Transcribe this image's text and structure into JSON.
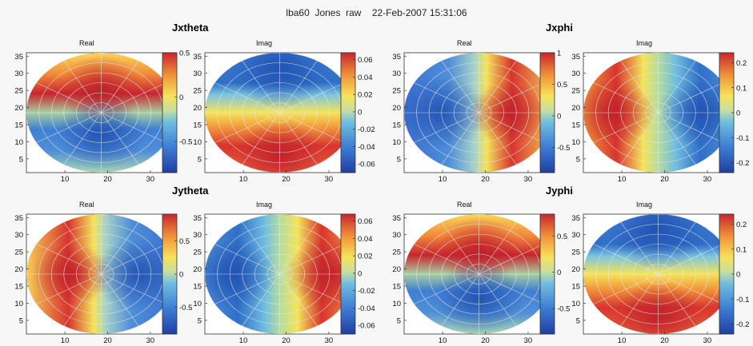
{
  "figure_title": "lba60  Jones  raw    22-Feb-2007 15:31:06",
  "groups": [
    {
      "title": "Jxtheta"
    },
    {
      "title": "Jxphi"
    },
    {
      "title": "Jytheta"
    },
    {
      "title": "Jyphi"
    }
  ],
  "chart_data": [
    {
      "type": "heatmap",
      "group": "Jxtheta",
      "title": "Real",
      "xticks": [
        10,
        20,
        30
      ],
      "yticks": [
        5,
        10,
        15,
        20,
        25,
        30,
        35
      ],
      "xlim": [
        1,
        36
      ],
      "ylim": [
        1,
        36
      ],
      "colorbar": {
        "clim": [
          -0.85,
          0.5
        ],
        "ticks": [
          0.5,
          0,
          -0.5
        ],
        "tick_labels": [
          "0.5",
          "0",
          "-0.5"
        ]
      },
      "pattern": "north-south lobes: positive (red) north, negative (blue) south"
    },
    {
      "type": "heatmap",
      "group": "Jxtheta",
      "title": "Imag",
      "xticks": [
        10,
        20,
        30
      ],
      "yticks": [
        5,
        10,
        15,
        20,
        25,
        30,
        35
      ],
      "xlim": [
        1,
        36
      ],
      "ylim": [
        1,
        36
      ],
      "colorbar": {
        "clim": [
          -0.07,
          0.068
        ],
        "ticks": [
          0.06,
          0.04,
          0.02,
          0,
          -0.02,
          -0.04,
          -0.06
        ],
        "tick_labels": [
          "0.06",
          "0.04",
          "0.02",
          "0",
          "-0.02",
          "-0.04",
          "-0.06"
        ]
      },
      "pattern": "horizontal bands: blue top, yellow middle, red bottom"
    },
    {
      "type": "heatmap",
      "group": "Jxphi",
      "title": "Real",
      "xticks": [
        10,
        20,
        30
      ],
      "yticks": [
        5,
        10,
        15,
        20,
        25,
        30,
        35
      ],
      "xlim": [
        1,
        36
      ],
      "ylim": [
        1,
        36
      ],
      "colorbar": {
        "clim": [
          -0.9,
          1
        ],
        "ticks": [
          1,
          0.5,
          0,
          -0.5
        ],
        "tick_labels": [
          "1",
          "0.5",
          "0",
          "-0.5"
        ]
      },
      "pattern": "east-west lobes: negative (blue) west, positive (red) east"
    },
    {
      "type": "heatmap",
      "group": "Jxphi",
      "title": "Imag",
      "xticks": [
        10,
        20,
        30
      ],
      "yticks": [
        5,
        10,
        15,
        20,
        25,
        30,
        35
      ],
      "xlim": [
        1,
        36
      ],
      "ylim": [
        1,
        36
      ],
      "colorbar": {
        "clim": [
          -0.24,
          0.24
        ],
        "ticks": [
          0.2,
          0.1,
          0,
          -0.1,
          -0.2
        ],
        "tick_labels": [
          "0.2",
          "0.1",
          "0",
          "-0.1",
          "-0.2"
        ]
      },
      "pattern": "vertical bands: red left, yellow centre, blue right"
    },
    {
      "type": "heatmap",
      "group": "Jytheta",
      "title": "Real",
      "xticks": [
        10,
        20,
        30
      ],
      "yticks": [
        5,
        10,
        15,
        20,
        25,
        30,
        35
      ],
      "xlim": [
        1,
        36
      ],
      "ylim": [
        1,
        36
      ],
      "colorbar": {
        "clim": [
          -0.9,
          0.9
        ],
        "ticks": [
          0.5,
          0,
          -0.5
        ],
        "tick_labels": [
          "0.5",
          "0",
          "-0.5"
        ]
      },
      "pattern": "east-west lobes: positive (red) west, negative (blue) east"
    },
    {
      "type": "heatmap",
      "group": "Jytheta",
      "title": "Imag",
      "xticks": [
        10,
        20,
        30
      ],
      "yticks": [
        5,
        10,
        15,
        20,
        25,
        30,
        35
      ],
      "xlim": [
        1,
        36
      ],
      "ylim": [
        1,
        36
      ],
      "colorbar": {
        "clim": [
          -0.07,
          0.068
        ],
        "ticks": [
          0.06,
          0.04,
          0.02,
          0,
          -0.02,
          -0.04,
          -0.06
        ],
        "tick_labels": [
          "0.06",
          "0.04",
          "0.02",
          "0",
          "-0.02",
          "-0.04",
          "-0.06"
        ]
      },
      "pattern": "vertical bands: blue left, yellow centre, red right"
    },
    {
      "type": "heatmap",
      "group": "Jyphi",
      "title": "Real",
      "xticks": [
        10,
        20,
        30
      ],
      "yticks": [
        5,
        10,
        15,
        20,
        25,
        30,
        35
      ],
      "xlim": [
        1,
        36
      ],
      "ylim": [
        1,
        36
      ],
      "colorbar": {
        "clim": [
          -0.85,
          0.8
        ],
        "ticks": [
          0.5,
          0,
          -0.5
        ],
        "tick_labels": [
          "0.5",
          "0",
          "-0.5"
        ]
      },
      "pattern": "north-south lobes: positive (red) north, negative (blue) south"
    },
    {
      "type": "heatmap",
      "group": "Jyphi",
      "title": "Imag",
      "xticks": [
        10,
        20,
        30
      ],
      "yticks": [
        5,
        10,
        15,
        20,
        25,
        30,
        35
      ],
      "xlim": [
        1,
        36
      ],
      "ylim": [
        1,
        36
      ],
      "colorbar": {
        "clim": [
          -0.24,
          0.24
        ],
        "ticks": [
          0.2,
          0.1,
          0,
          -0.1,
          -0.2
        ],
        "tick_labels": [
          "0.2",
          "0.1",
          "0",
          "-0.1",
          "-0.2"
        ]
      },
      "pattern": "horizontal bands: blue top, yellow middle, red bottom"
    }
  ]
}
